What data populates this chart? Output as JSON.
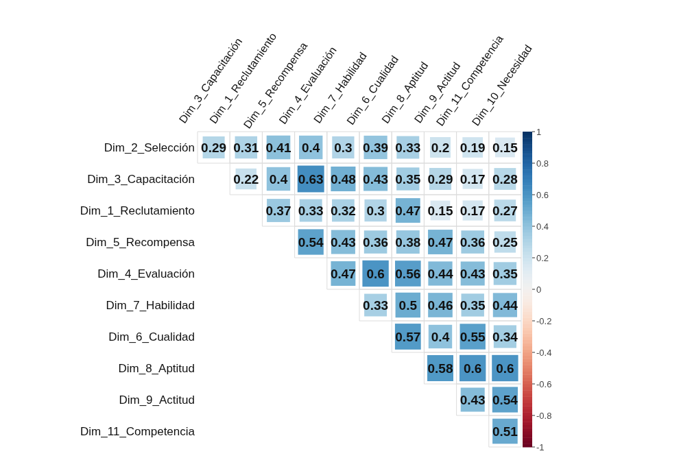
{
  "chart_data": {
    "type": "heatmap",
    "categories": [
      "Dim_3_Capacitación",
      "Dim_1_Reclutamiento",
      "Dim_5_Recompensa",
      "Dim_4_Evaluación",
      "Dim_7_Habilidad",
      "Dim_6_Cualidad",
      "Dim_8_Aptitud",
      "Dim_9_Actitud",
      "Dim_11_Competencia",
      "Dim_10_Necesidad"
    ],
    "y_categories": [
      "Dim_2_Selección",
      "Dim_3_Capacitación",
      "Dim_1_Reclutamiento",
      "Dim_5_Recompensa",
      "Dim_4_Evaluación",
      "Dim_7_Habilidad",
      "Dim_6_Cualidad",
      "Dim_8_Aptitud",
      "Dim_9_Actitud",
      "Dim_11_Competencia"
    ],
    "cells": [
      [
        0.29,
        0.31,
        0.41,
        0.4,
        0.3,
        0.39,
        0.33,
        0.2,
        0.19,
        0.15
      ],
      [
        null,
        0.22,
        0.4,
        0.63,
        0.48,
        0.43,
        0.35,
        0.29,
        0.17,
        0.28
      ],
      [
        null,
        null,
        0.37,
        0.33,
        0.32,
        0.3,
        0.47,
        0.15,
        0.17,
        0.27
      ],
      [
        null,
        null,
        null,
        0.54,
        0.43,
        0.36,
        0.38,
        0.47,
        0.36,
        0.25
      ],
      [
        null,
        null,
        null,
        null,
        0.47,
        0.6,
        0.56,
        0.44,
        0.43,
        0.35
      ],
      [
        null,
        null,
        null,
        null,
        null,
        0.33,
        0.5,
        0.46,
        0.35,
        0.44
      ],
      [
        null,
        null,
        null,
        null,
        null,
        null,
        0.57,
        0.4,
        0.55,
        0.34
      ],
      [
        null,
        null,
        null,
        null,
        null,
        null,
        null,
        0.58,
        0.6,
        0.6
      ],
      [
        null,
        null,
        null,
        null,
        null,
        null,
        null,
        null,
        0.43,
        0.54
      ],
      [
        null,
        null,
        null,
        null,
        null,
        null,
        null,
        null,
        null,
        0.51
      ]
    ],
    "clim": [
      -1,
      1
    ],
    "cticks": [
      -1,
      -0.8,
      -0.6,
      -0.4,
      -0.2,
      0,
      0.2,
      0.4,
      0.6,
      0.8,
      1
    ],
    "data_labels": true
  }
}
